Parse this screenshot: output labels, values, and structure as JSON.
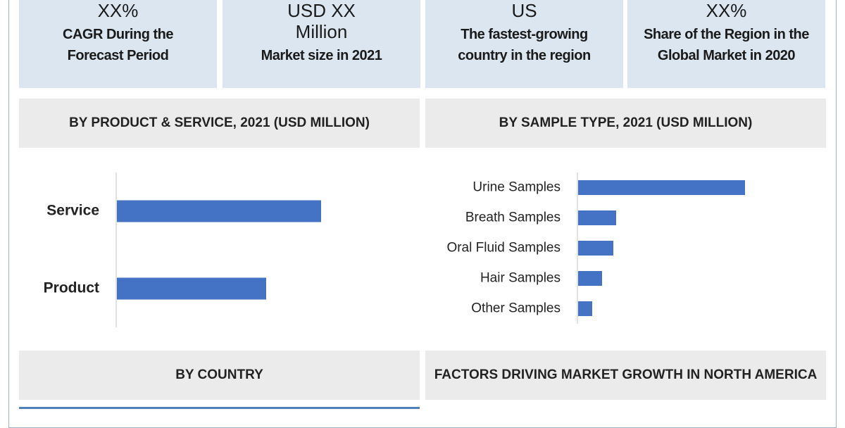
{
  "stats": [
    {
      "value": "XX%",
      "label": "CAGR During the Forecast Period"
    },
    {
      "value": "USD XX Million",
      "label": "Market size in 2021"
    },
    {
      "value": "US",
      "label": "The fastest-growing country in the region"
    },
    {
      "value": "XX%",
      "label": "Share of the Region in the Global Market in 2020"
    }
  ],
  "chart_data": [
    {
      "type": "bar",
      "orientation": "horizontal",
      "title": "BY PRODUCT & SERVICE, 2021 (USD MILLION)",
      "categories": [
        "Service",
        "Product"
      ],
      "values": [
        290,
        212
      ],
      "color": "#4472c4",
      "xlim": [
        0,
        300
      ]
    },
    {
      "type": "bar",
      "orientation": "horizontal",
      "title": "BY SAMPLE TYPE, 2021 (USD MILLION)",
      "categories": [
        "Urine Samples",
        "Breath Samples",
        "Oral Fluid Samples",
        "Hair Samples",
        "Other Samples"
      ],
      "values": [
        237,
        54,
        50,
        34,
        20
      ],
      "color": "#4472c4",
      "xlim": [
        0,
        300
      ]
    }
  ],
  "sections": [
    "BY COUNTRY",
    "FACTORS DRIVING MARKET GROWTH IN NORTH AMERICA"
  ]
}
